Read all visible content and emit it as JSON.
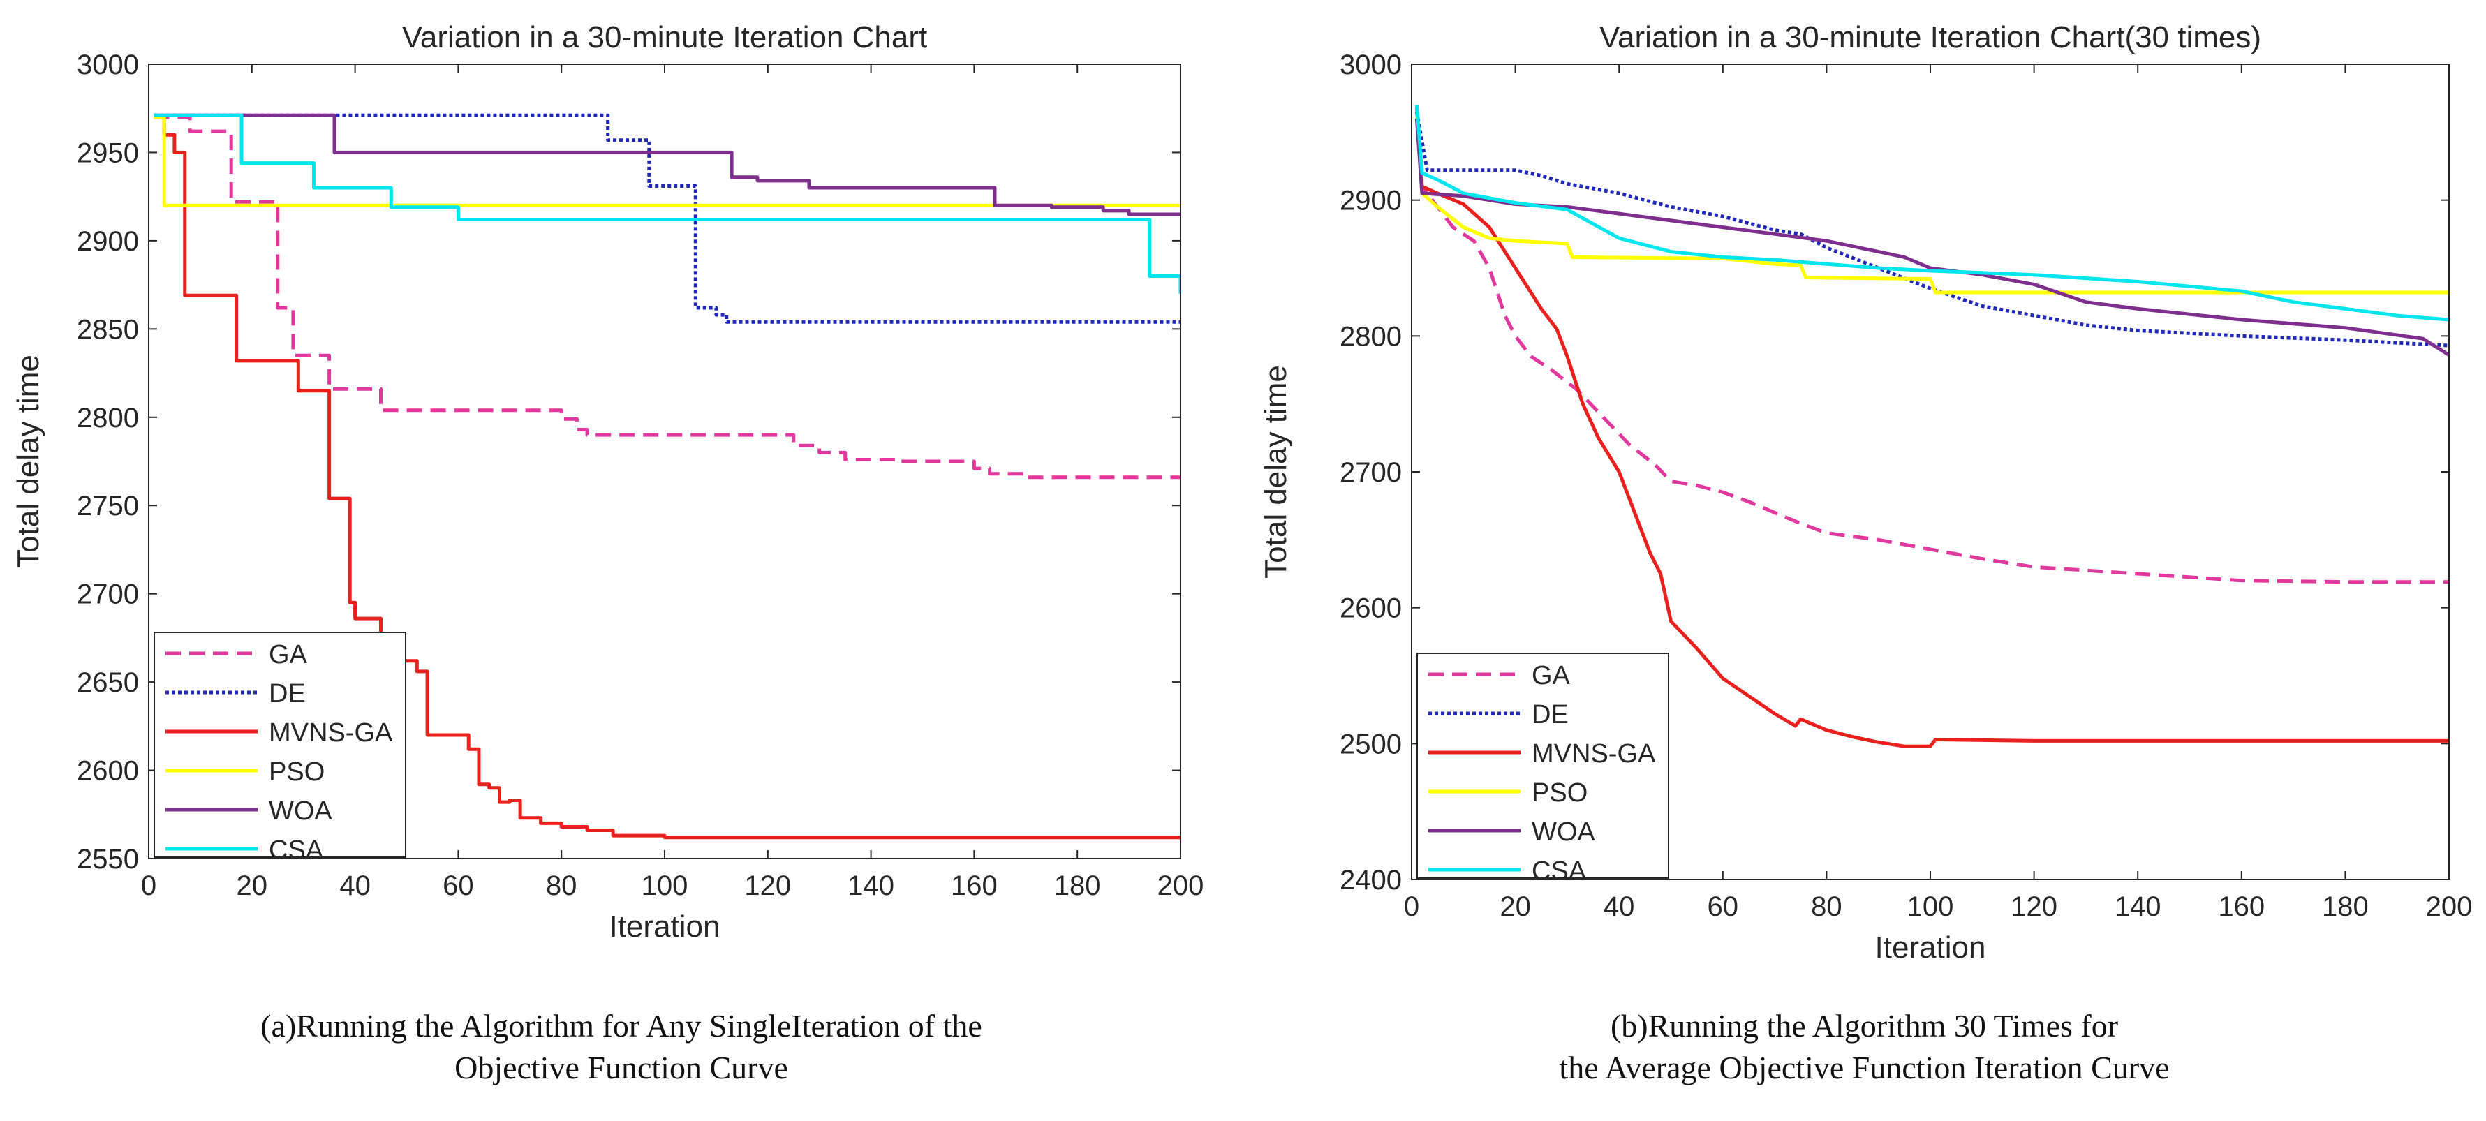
{
  "figure": {
    "captions": [
      [
        "(a)Running the Algorithm for Any SingleIteration of the",
        "Objective Function Curve"
      ],
      [
        "(b)Running the Algorithm 30 Times for",
        "the Average Objective Function Iteration Curve"
      ]
    ]
  },
  "chart_data": [
    {
      "type": "line",
      "title": "Variation in a 30-minute Iteration Chart",
      "xlabel": "Iteration",
      "ylabel": "Total delay time",
      "xlim": [
        0,
        200
      ],
      "ylim": [
        2550,
        3000
      ],
      "xticks": [
        0,
        20,
        40,
        60,
        80,
        100,
        120,
        140,
        160,
        180,
        200
      ],
      "yticks": [
        2550,
        2600,
        2650,
        2700,
        2750,
        2800,
        2850,
        2900,
        2950,
        3000
      ],
      "grid": false,
      "legend_position": "bottom-left",
      "series": [
        {
          "name": "GA",
          "color": "#e0389c",
          "style": "dashed",
          "step": true,
          "points": [
            [
              1,
              2970
            ],
            [
              7,
              2970
            ],
            [
              8,
              2962
            ],
            [
              15,
              2962
            ],
            [
              16,
              2922
            ],
            [
              24,
              2922
            ],
            [
              25,
              2862
            ],
            [
              27,
              2862
            ],
            [
              28,
              2835
            ],
            [
              34,
              2835
            ],
            [
              35,
              2816
            ],
            [
              44,
              2816
            ],
            [
              45,
              2804
            ],
            [
              79,
              2804
            ],
            [
              80,
              2799
            ],
            [
              82,
              2799
            ],
            [
              83,
              2793
            ],
            [
              84,
              2793
            ],
            [
              85,
              2790
            ],
            [
              122,
              2790
            ],
            [
              125,
              2784
            ],
            [
              130,
              2780
            ],
            [
              135,
              2776
            ],
            [
              145,
              2775
            ],
            [
              160,
              2771
            ],
            [
              163,
              2768
            ],
            [
              170,
              2766
            ],
            [
              200,
              2766
            ]
          ]
        },
        {
          "name": "DE",
          "color": "#1f28b8",
          "style": "dotted",
          "step": true,
          "points": [
            [
              1,
              2971
            ],
            [
              88,
              2971
            ],
            [
              89,
              2957
            ],
            [
              96,
              2957
            ],
            [
              97,
              2931
            ],
            [
              105,
              2931
            ],
            [
              106,
              2862
            ],
            [
              108,
              2862
            ],
            [
              110,
              2858
            ],
            [
              112,
              2854
            ],
            [
              200,
              2853
            ]
          ]
        },
        {
          "name": "MVNS-GA",
          "color": "#e8201e",
          "style": "solid",
          "step": true,
          "points": [
            [
              1,
              2970
            ],
            [
              3,
              2960
            ],
            [
              5,
              2950
            ],
            [
              7,
              2869
            ],
            [
              16,
              2869
            ],
            [
              17,
              2832
            ],
            [
              28,
              2832
            ],
            [
              29,
              2815
            ],
            [
              34,
              2815
            ],
            [
              35,
              2754
            ],
            [
              38,
              2754
            ],
            [
              39,
              2695
            ],
            [
              40,
              2686
            ],
            [
              44,
              2686
            ],
            [
              45,
              2670
            ],
            [
              48,
              2662
            ],
            [
              52,
              2656
            ],
            [
              54,
              2620
            ],
            [
              60,
              2620
            ],
            [
              62,
              2612
            ],
            [
              64,
              2592
            ],
            [
              66,
              2590
            ],
            [
              68,
              2582
            ],
            [
              70,
              2583
            ],
            [
              72,
              2573
            ],
            [
              76,
              2570
            ],
            [
              80,
              2568
            ],
            [
              85,
              2566
            ],
            [
              90,
              2563
            ],
            [
              100,
              2562
            ],
            [
              200,
              2562
            ]
          ]
        },
        {
          "name": "PSO",
          "color": "#ffff00",
          "style": "solid",
          "step": true,
          "points": [
            [
              1,
              2970
            ],
            [
              3,
              2920
            ],
            [
              200,
              2920
            ]
          ]
        },
        {
          "name": "WOA",
          "color": "#7e2f8e",
          "style": "solid",
          "step": true,
          "points": [
            [
              1,
              2971
            ],
            [
              35,
              2971
            ],
            [
              36,
              2950
            ],
            [
              110,
              2950
            ],
            [
              113,
              2936
            ],
            [
              118,
              2934
            ],
            [
              125,
              2934
            ],
            [
              128,
              2930
            ],
            [
              162,
              2930
            ],
            [
              164,
              2920
            ],
            [
              175,
              2919
            ],
            [
              185,
              2917
            ],
            [
              190,
              2915
            ],
            [
              200,
              2915
            ]
          ]
        },
        {
          "name": "CSA",
          "color": "#00e5ee",
          "style": "solid",
          "step": true,
          "points": [
            [
              1,
              2971
            ],
            [
              17,
              2971
            ],
            [
              18,
              2944
            ],
            [
              31,
              2944
            ],
            [
              32,
              2930
            ],
            [
              46,
              2930
            ],
            [
              47,
              2919
            ],
            [
              59,
              2919
            ],
            [
              60,
              2912
            ],
            [
              182,
              2912
            ],
            [
              193,
              2912
            ],
            [
              194,
              2880
            ],
            [
              199,
              2880
            ],
            [
              200,
              2870
            ]
          ]
        }
      ]
    },
    {
      "type": "line",
      "title": "Variation in a 30-minute Iteration Chart(30 times)",
      "xlabel": "Iteration",
      "ylabel": "Total delay time",
      "xlim": [
        0,
        200
      ],
      "ylim": [
        2400,
        3000
      ],
      "xticks": [
        0,
        20,
        40,
        60,
        80,
        100,
        120,
        140,
        160,
        180,
        200
      ],
      "yticks": [
        2400,
        2500,
        2600,
        2700,
        2800,
        2900,
        3000
      ],
      "grid": false,
      "legend_position": "bottom-left",
      "series": [
        {
          "name": "GA",
          "color": "#e0389c",
          "style": "dashed",
          "step": false,
          "points": [
            [
              1,
              2968
            ],
            [
              2,
              2910
            ],
            [
              5,
              2895
            ],
            [
              8,
              2880
            ],
            [
              12,
              2870
            ],
            [
              15,
              2850
            ],
            [
              18,
              2815
            ],
            [
              20,
              2800
            ],
            [
              23,
              2785
            ],
            [
              27,
              2775
            ],
            [
              32,
              2760
            ],
            [
              37,
              2740
            ],
            [
              42,
              2720
            ],
            [
              47,
              2705
            ],
            [
              50,
              2693
            ],
            [
              55,
              2690
            ],
            [
              60,
              2685
            ],
            [
              65,
              2678
            ],
            [
              70,
              2670
            ],
            [
              75,
              2662
            ],
            [
              80,
              2655
            ],
            [
              90,
              2650
            ],
            [
              100,
              2643
            ],
            [
              110,
              2636
            ],
            [
              120,
              2630
            ],
            [
              140,
              2625
            ],
            [
              160,
              2620
            ],
            [
              180,
              2619
            ],
            [
              200,
              2619
            ]
          ]
        },
        {
          "name": "DE",
          "color": "#1f28b8",
          "style": "dotted",
          "step": false,
          "points": [
            [
              1,
              2965
            ],
            [
              3,
              2922
            ],
            [
              10,
              2922
            ],
            [
              20,
              2922
            ],
            [
              25,
              2918
            ],
            [
              30,
              2912
            ],
            [
              40,
              2905
            ],
            [
              50,
              2895
            ],
            [
              60,
              2888
            ],
            [
              70,
              2878
            ],
            [
              75,
              2875
            ],
            [
              80,
              2865
            ],
            [
              90,
              2850
            ],
            [
              100,
              2835
            ],
            [
              110,
              2822
            ],
            [
              120,
              2815
            ],
            [
              130,
              2808
            ],
            [
              140,
              2804
            ],
            [
              160,
              2800
            ],
            [
              180,
              2797
            ],
            [
              200,
              2793
            ]
          ]
        },
        {
          "name": "MVNS-GA",
          "color": "#e8201e",
          "style": "solid",
          "step": false,
          "points": [
            [
              1,
              2960
            ],
            [
              2,
              2910
            ],
            [
              5,
              2905
            ],
            [
              10,
              2897
            ],
            [
              15,
              2880
            ],
            [
              20,
              2850
            ],
            [
              25,
              2820
            ],
            [
              28,
              2805
            ],
            [
              30,
              2785
            ],
            [
              33,
              2750
            ],
            [
              36,
              2725
            ],
            [
              40,
              2700
            ],
            [
              43,
              2670
            ],
            [
              46,
              2640
            ],
            [
              48,
              2625
            ],
            [
              50,
              2590
            ],
            [
              52,
              2582
            ],
            [
              55,
              2570
            ],
            [
              60,
              2548
            ],
            [
              65,
              2535
            ],
            [
              70,
              2522
            ],
            [
              74,
              2513
            ],
            [
              75,
              2518
            ],
            [
              80,
              2510
            ],
            [
              85,
              2505
            ],
            [
              90,
              2501
            ],
            [
              95,
              2498
            ],
            [
              100,
              2498
            ],
            [
              101,
              2503
            ],
            [
              120,
              2502
            ],
            [
              200,
              2502
            ]
          ]
        },
        {
          "name": "PSO",
          "color": "#ffff00",
          "style": "solid",
          "step": false,
          "points": [
            [
              1,
              2962
            ],
            [
              2,
              2905
            ],
            [
              5,
              2895
            ],
            [
              10,
              2880
            ],
            [
              15,
              2872
            ],
            [
              20,
              2870
            ],
            [
              30,
              2868
            ],
            [
              31,
              2858
            ],
            [
              60,
              2857
            ],
            [
              70,
              2853
            ],
            [
              75,
              2852
            ],
            [
              76,
              2843
            ],
            [
              100,
              2842
            ],
            [
              101,
              2832
            ],
            [
              140,
              2832
            ],
            [
              200,
              2832
            ]
          ]
        },
        {
          "name": "WOA",
          "color": "#7e2f8e",
          "style": "solid",
          "step": false,
          "points": [
            [
              1,
              2960
            ],
            [
              2,
              2905
            ],
            [
              10,
              2903
            ],
            [
              20,
              2897
            ],
            [
              30,
              2895
            ],
            [
              40,
              2890
            ],
            [
              50,
              2885
            ],
            [
              60,
              2880
            ],
            [
              70,
              2875
            ],
            [
              80,
              2870
            ],
            [
              90,
              2862
            ],
            [
              95,
              2858
            ],
            [
              100,
              2850
            ],
            [
              110,
              2845
            ],
            [
              120,
              2838
            ],
            [
              130,
              2825
            ],
            [
              140,
              2820
            ],
            [
              160,
              2812
            ],
            [
              180,
              2806
            ],
            [
              195,
              2798
            ],
            [
              200,
              2786
            ]
          ]
        },
        {
          "name": "CSA",
          "color": "#00e5ee",
          "style": "solid",
          "step": false,
          "points": [
            [
              1,
              2970
            ],
            [
              2,
              2920
            ],
            [
              5,
              2915
            ],
            [
              10,
              2905
            ],
            [
              20,
              2898
            ],
            [
              30,
              2893
            ],
            [
              40,
              2872
            ],
            [
              50,
              2862
            ],
            [
              60,
              2858
            ],
            [
              70,
              2856
            ],
            [
              80,
              2853
            ],
            [
              90,
              2850
            ],
            [
              100,
              2848
            ],
            [
              120,
              2845
            ],
            [
              140,
              2840
            ],
            [
              160,
              2833
            ],
            [
              170,
              2825
            ],
            [
              180,
              2820
            ],
            [
              190,
              2815
            ],
            [
              200,
              2812
            ]
          ]
        }
      ]
    }
  ]
}
